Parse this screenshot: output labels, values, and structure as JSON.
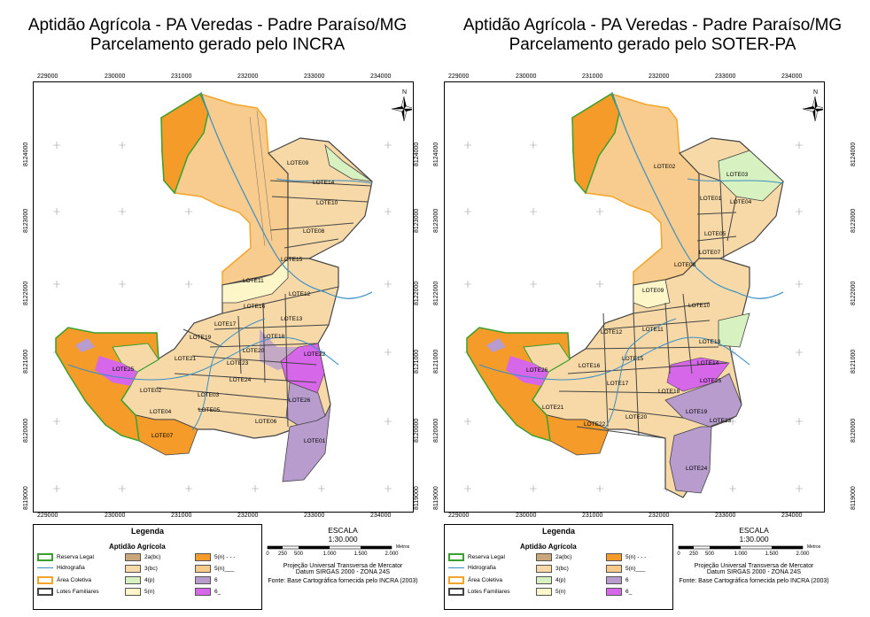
{
  "panels": [
    {
      "title_line1": "Aptidão Agrícola - PA Veredas - Padre Paraíso/MG",
      "title_line2": "Parcelamento gerado pelo INCRA",
      "lotes": [
        "LOTE09",
        "LOTE14",
        "LOTE10",
        "LOTE08",
        "LOTE15",
        "LOTE11",
        "LOTE12",
        "LOTE16",
        "LOTE13",
        "LOTE17",
        "LOTE18",
        "LOTE19",
        "LOTE20",
        "LOTE21",
        "LOTE22",
        "LOTE23",
        "LOTE25",
        "LOTE24",
        "LOTE02",
        "LOTE03",
        "LOTE26",
        "LOTE04",
        "LOTE05",
        "LOTE06",
        "LOTE07",
        "LOTE01"
      ]
    },
    {
      "title_line1": "Aptidão Agrícola - PA Veredas - Padre Paraíso/MG",
      "title_line2": "Parcelamento gerado pelo SOTER-PA",
      "lotes": [
        "LOTE02",
        "LOTE03",
        "LOTE01",
        "LOTE04",
        "LOTE05",
        "LOTE07",
        "LOTE08",
        "LOTE09",
        "LOTE10",
        "LOTE11",
        "LOTE12",
        "LOTE13",
        "LOTE15",
        "LOTE16",
        "LOTE14",
        "LOTE26",
        "LOTE25",
        "LOTE17",
        "LOTE18",
        "LOTE20",
        "LOTE19",
        "LOTE21",
        "LOTE22",
        "LOTE23",
        "LOTE24"
      ]
    }
  ],
  "x_ticks": [
    "229000",
    "230000",
    "231000",
    "232000",
    "233000",
    "234000"
  ],
  "y_ticks": [
    "8124000",
    "8123000",
    "8122000",
    "8121000",
    "8120000",
    "8119000"
  ],
  "north": "N",
  "legend": {
    "title": "Legenda",
    "subtitle": "Aptidão Agrícola",
    "items": [
      {
        "label": "Reserva Legal",
        "type": "outline",
        "color": "#3aa02e"
      },
      {
        "label": "Hidrografia",
        "type": "line",
        "color": "#3a8fc4"
      },
      {
        "label": "Área Coletiva",
        "type": "outline",
        "color": "#f2a52a"
      },
      {
        "label": "Lotes Familiares",
        "type": "outline",
        "color": "#444444"
      }
    ],
    "classes": [
      {
        "label": "2a(bc)",
        "color": "#c9a77a"
      },
      {
        "label": "3(bc)",
        "color": "#f7d9a8"
      },
      {
        "label": "4(p)",
        "color": "#d7f2c0"
      },
      {
        "label": "5(n)",
        "color": "#fdf6c8"
      },
      {
        "label": "5(n) - - -",
        "color": "#f49b2a"
      },
      {
        "label": "5(n)___",
        "color": "#f7c98a"
      },
      {
        "label": "6",
        "color": "#b79ccd"
      },
      {
        "label": "6_",
        "color": "#d667e8"
      }
    ]
  },
  "scale": {
    "heading": "ESCALA",
    "ratio": "1:30.000",
    "unit": "Metros",
    "ticks": [
      "0",
      "250",
      "500",
      "1.000",
      "1.500",
      "2.000"
    ],
    "projection": "Projeção Universal Transversa de Mercator",
    "datum": "Datum SIRGAS 2000 - ZONA 24S",
    "source": "Fonte: Base Cartográfica fornecida pelo INCRA (2003)"
  }
}
